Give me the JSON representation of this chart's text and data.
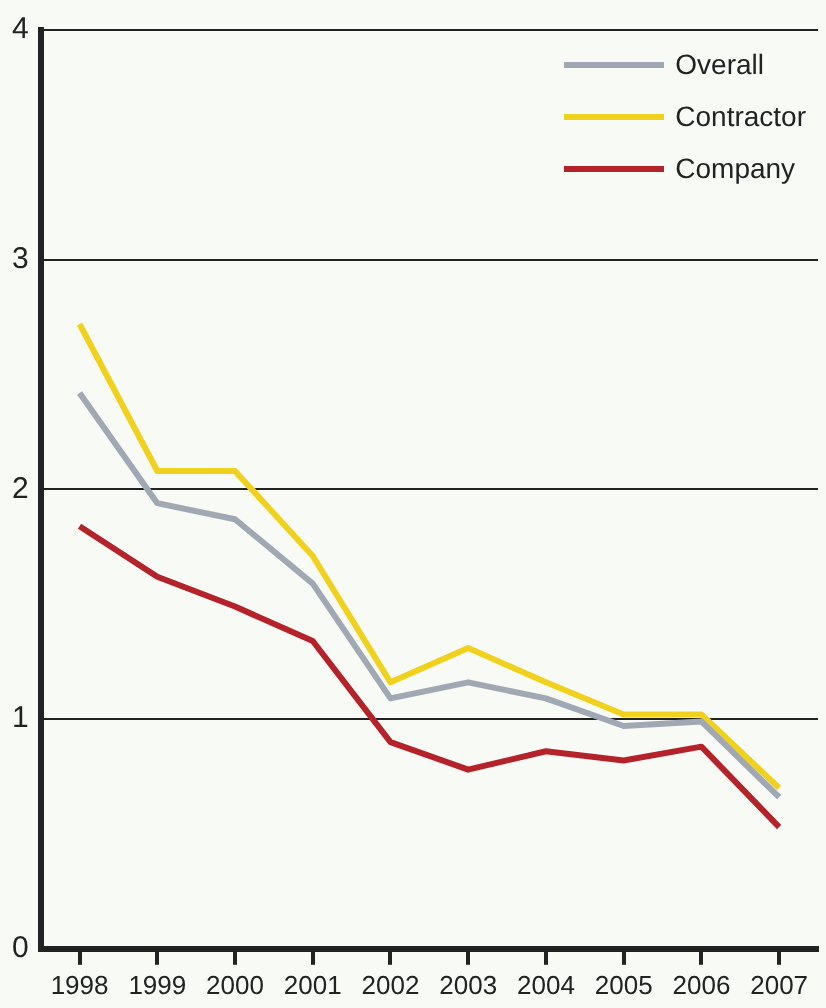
{
  "chart_data": {
    "type": "line",
    "categories": [
      "1998",
      "1999",
      "2000",
      "2001",
      "2002",
      "2003",
      "2004",
      "2005",
      "2006",
      "2007"
    ],
    "series": [
      {
        "name": "Overall",
        "color": "#a0a8b4",
        "values": [
          2.42,
          1.94,
          1.87,
          1.59,
          1.09,
          1.16,
          1.09,
          0.97,
          0.99,
          0.66
        ]
      },
      {
        "name": "Contractor",
        "color": "#f0d21e",
        "values": [
          2.72,
          2.08,
          2.08,
          1.71,
          1.16,
          1.31,
          1.16,
          1.02,
          1.02,
          0.7
        ]
      },
      {
        "name": "Company",
        "color": "#b4232a",
        "values": [
          1.84,
          1.62,
          1.49,
          1.34,
          0.9,
          0.78,
          0.86,
          0.82,
          0.88,
          0.53
        ]
      }
    ],
    "ylim": [
      0,
      4
    ],
    "yticks": [
      0,
      1,
      2,
      3,
      4
    ],
    "grid": "y",
    "legend": "top right",
    "marker": "none",
    "line_style": "solid"
  }
}
